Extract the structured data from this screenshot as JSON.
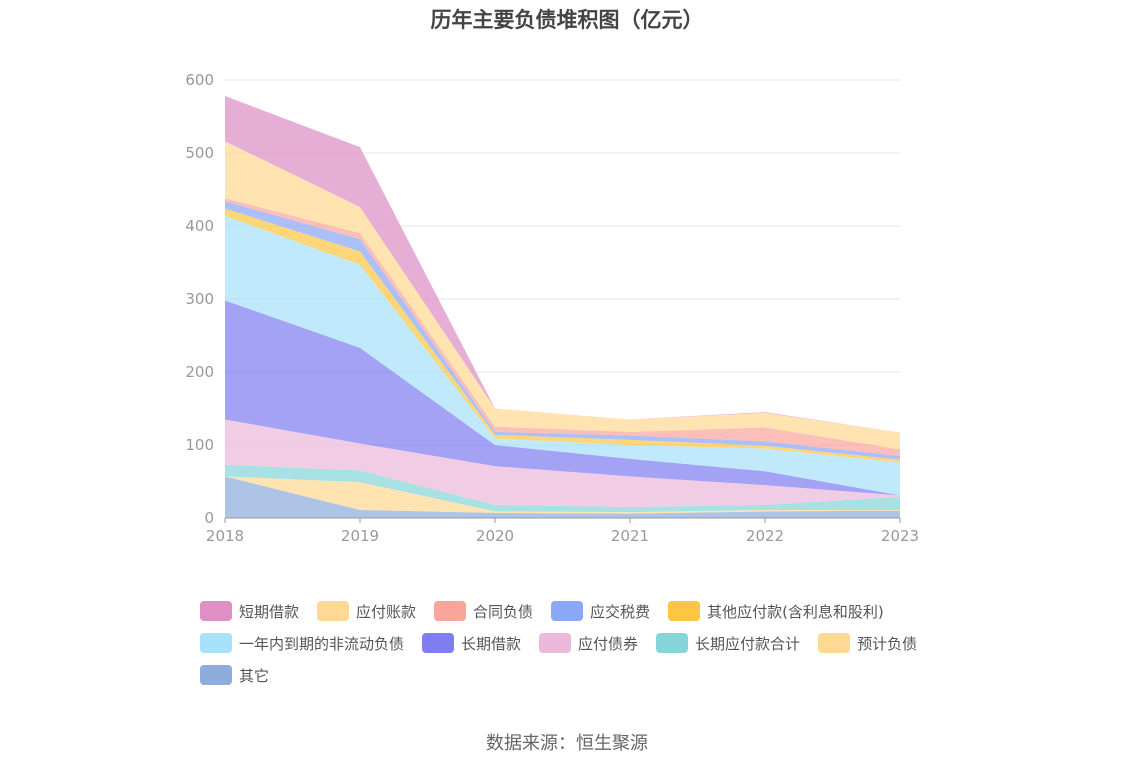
{
  "chart_data": {
    "type": "area",
    "stacked": true,
    "title": "历年主要负债堆积图（亿元）",
    "x": [
      "2018",
      "2019",
      "2020",
      "2021",
      "2022",
      "2023"
    ],
    "ylim": [
      0,
      600
    ],
    "yticks": [
      0,
      100,
      200,
      300,
      400,
      500,
      600
    ],
    "grid": true,
    "legend_position": "bottom",
    "series": [
      {
        "name": "短期借款",
        "color": "#de8fc5",
        "values": [
          62,
          82,
          0,
          0,
          1,
          0
        ]
      },
      {
        "name": "应付账款",
        "color": "#ffd994",
        "values": [
          78,
          36,
          25,
          17,
          20,
          23
        ]
      },
      {
        "name": "合同负债",
        "color": "#f9a59c",
        "values": [
          4,
          8,
          7,
          5,
          19,
          9
        ]
      },
      {
        "name": "应交税费",
        "color": "#8ba7f7",
        "values": [
          10,
          17,
          4,
          6,
          6,
          5
        ]
      },
      {
        "name": "其他应付款(含利息和股利)",
        "color": "#fcc643",
        "values": [
          10,
          18,
          5,
          7,
          4,
          4
        ]
      },
      {
        "name": "一年内到期的非流动负债",
        "color": "#a8e1fb",
        "values": [
          116,
          114,
          9,
          19,
          31,
          45
        ]
      },
      {
        "name": "长期借款",
        "color": "#7f7ef0",
        "values": [
          163,
          131,
          29,
          24,
          19,
          0
        ]
      },
      {
        "name": "应付债券",
        "color": "#ebbadb",
        "values": [
          62,
          37,
          53,
          42,
          27,
          2
        ]
      },
      {
        "name": "长期应付款合计",
        "color": "#86d6d9",
        "values": [
          16,
          16,
          9,
          7,
          7,
          18
        ]
      },
      {
        "name": "预计负债",
        "color": "#ffd994",
        "values": [
          0,
          38,
          2,
          2,
          2,
          1
        ]
      },
      {
        "name": "其它",
        "color": "#8faddc",
        "values": [
          57,
          11,
          7,
          6,
          9,
          10
        ]
      }
    ]
  },
  "source": "数据来源：恒生聚源"
}
